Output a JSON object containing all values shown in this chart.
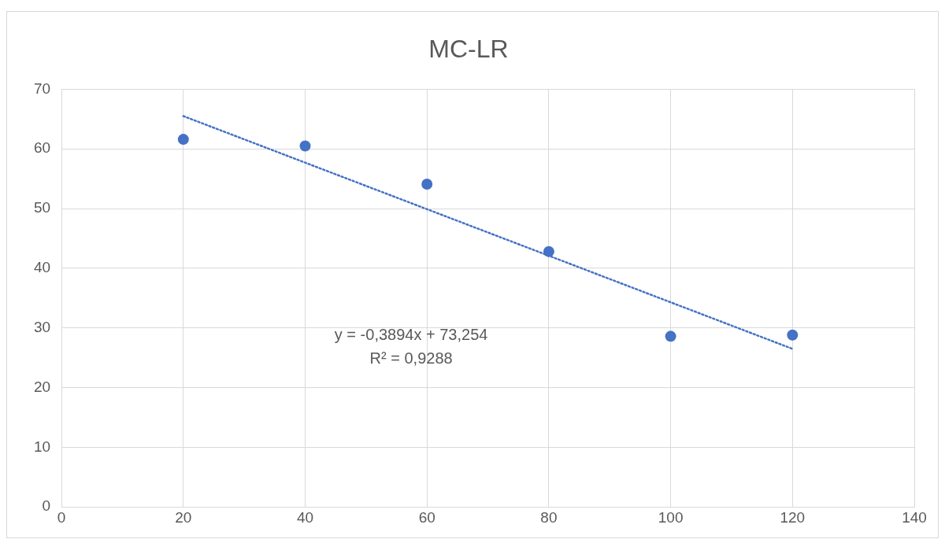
{
  "chart_data": {
    "type": "scatter",
    "title": "MC-LR",
    "x": [
      20,
      40,
      60,
      80,
      100,
      120
    ],
    "series": [
      {
        "type": "scatter",
        "color": "#4472c4",
        "values": [
          61.6,
          60.5,
          54.1,
          42.8,
          28.6,
          28.8
        ],
        "marker": "circle"
      },
      {
        "type": "line",
        "color": "#4472c4",
        "x": [
          20,
          120
        ],
        "values": [
          65.5,
          26.5
        ],
        "marker": "none",
        "line_style": "dotted"
      }
    ],
    "xlim": [
      0,
      140
    ],
    "xticks": [
      0,
      20,
      40,
      60,
      80,
      100,
      120,
      140
    ],
    "ylim": [
      0,
      70
    ],
    "yticks": [
      0,
      10,
      20,
      30,
      40,
      50,
      60,
      70
    ],
    "grid": true,
    "legend": false,
    "annotations": [
      "y = -0,3894x + 73,254",
      "R² = 0,9288"
    ]
  }
}
